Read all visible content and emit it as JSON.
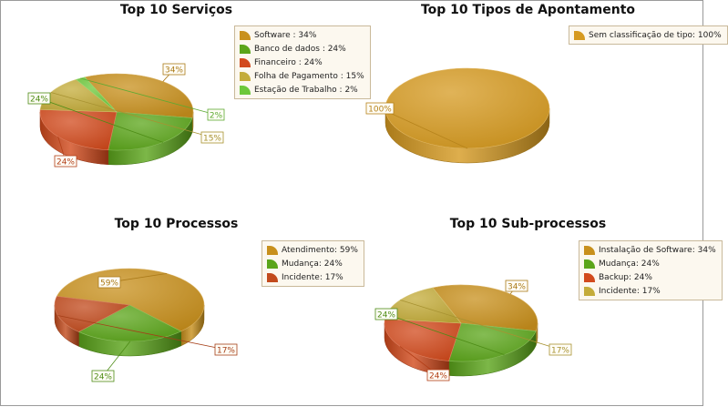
{
  "chart_data": [
    {
      "type": "pie",
      "title": "Top 10 Serviços",
      "categories": [
        "Software",
        "Banco de dados",
        "Financeiro",
        "Folha de Pagamento",
        "Estação de Trabalho"
      ],
      "values": [
        34,
        24,
        24,
        15,
        2
      ],
      "data_labels": [
        "34%",
        "24%",
        "24%",
        "15%",
        "2%"
      ],
      "legend_entries": [
        "Software : 34%",
        "Banco de dados : 24%",
        "Financeiro : 24%",
        "Folha de Pagamento : 15%",
        "Estação de Trabalho : 2%"
      ],
      "colors": [
        "#c8901c",
        "#5ba51a",
        "#d24a1c",
        "#c4ac3a",
        "#6cc83a"
      ],
      "legend_placement": "top-right"
    },
    {
      "type": "pie",
      "title": "Top 10 Tipos de Apontamento",
      "categories": [
        "Sem classificação de tipo"
      ],
      "values": [
        100
      ],
      "data_labels": [
        "100%"
      ],
      "legend_entries": [
        "Sem classificação de tipo: 100%"
      ],
      "colors": [
        "#d69a20"
      ],
      "legend_placement": "top-right"
    },
    {
      "type": "pie",
      "title": "Top 10 Processos",
      "categories": [
        "Atendimento",
        "Mudança",
        "Incidente"
      ],
      "values": [
        59,
        24,
        17
      ],
      "data_labels": [
        "59%",
        "24%",
        "17%"
      ],
      "legend_entries": [
        "Atendimento: 59%",
        "Mudança: 24%",
        "Incidente: 17%"
      ],
      "colors": [
        "#c8901c",
        "#5ba51a",
        "#c24a1c"
      ],
      "legend_placement": "top-right"
    },
    {
      "type": "pie",
      "title": "Top 10 Sub-processos",
      "categories": [
        "Instalação de Software",
        "Mudança",
        "Backup",
        "Incidente"
      ],
      "values": [
        34,
        24,
        24,
        17
      ],
      "data_labels": [
        "34%",
        "24%",
        "24%",
        "17%"
      ],
      "legend_entries": [
        "Instalação de Software: 34%",
        "Mudança: 24%",
        "Backup: 24%",
        "Incidente: 17%"
      ],
      "colors": [
        "#c8901c",
        "#5ba51a",
        "#d24a1c",
        "#c4ac3a"
      ],
      "legend_placement": "top-right"
    }
  ]
}
